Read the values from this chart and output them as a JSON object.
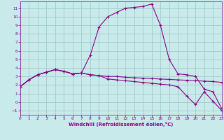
{
  "xlabel": "Windchill (Refroidissement éolien,°C)",
  "bg_color": "#c8eaea",
  "grid_color": "#a0cccc",
  "line_color": "#880088",
  "xlim": [
    0,
    23
  ],
  "ylim": [
    -1.5,
    11.8
  ],
  "xticks": [
    0,
    1,
    2,
    3,
    4,
    5,
    6,
    7,
    8,
    9,
    10,
    11,
    12,
    13,
    14,
    15,
    16,
    17,
    18,
    19,
    20,
    21,
    22,
    23
  ],
  "yticks": [
    -1,
    0,
    1,
    2,
    3,
    4,
    5,
    6,
    7,
    8,
    9,
    10,
    11
  ],
  "line1_x": [
    0,
    1,
    2,
    3,
    4,
    5,
    6,
    7,
    8,
    9,
    10,
    11,
    12,
    13,
    14,
    15,
    16,
    17,
    18,
    19,
    20,
    21,
    22,
    23
  ],
  "line1_y": [
    1.8,
    2.6,
    3.2,
    3.5,
    3.8,
    3.6,
    3.3,
    3.4,
    3.2,
    3.1,
    3.0,
    3.0,
    2.9,
    2.85,
    2.8,
    2.75,
    2.7,
    2.65,
    2.6,
    2.55,
    2.5,
    2.45,
    2.4,
    2.3
  ],
  "line2_x": [
    0,
    1,
    2,
    3,
    4,
    5,
    6,
    7,
    8,
    9,
    10,
    11,
    12,
    13,
    14,
    15,
    16,
    17,
    18,
    19,
    20,
    21,
    22,
    23
  ],
  "line2_y": [
    1.8,
    2.6,
    3.2,
    3.5,
    3.8,
    3.6,
    3.3,
    3.4,
    5.5,
    8.8,
    10.0,
    10.5,
    11.0,
    11.1,
    11.2,
    11.5,
    9.0,
    5.0,
    3.3,
    3.2,
    3.0,
    1.5,
    1.2,
    -0.8
  ],
  "line3_x": [
    0,
    1,
    2,
    3,
    4,
    5,
    6,
    7,
    8,
    9,
    10,
    11,
    12,
    13,
    14,
    15,
    16,
    17,
    18,
    19,
    20,
    21,
    22,
    23
  ],
  "line3_y": [
    1.8,
    2.6,
    3.2,
    3.5,
    3.8,
    3.6,
    3.3,
    3.4,
    3.2,
    3.1,
    2.7,
    2.6,
    2.5,
    2.4,
    2.3,
    2.2,
    2.1,
    2.0,
    1.8,
    0.7,
    -0.3,
    1.2,
    0.1,
    -1.0
  ]
}
